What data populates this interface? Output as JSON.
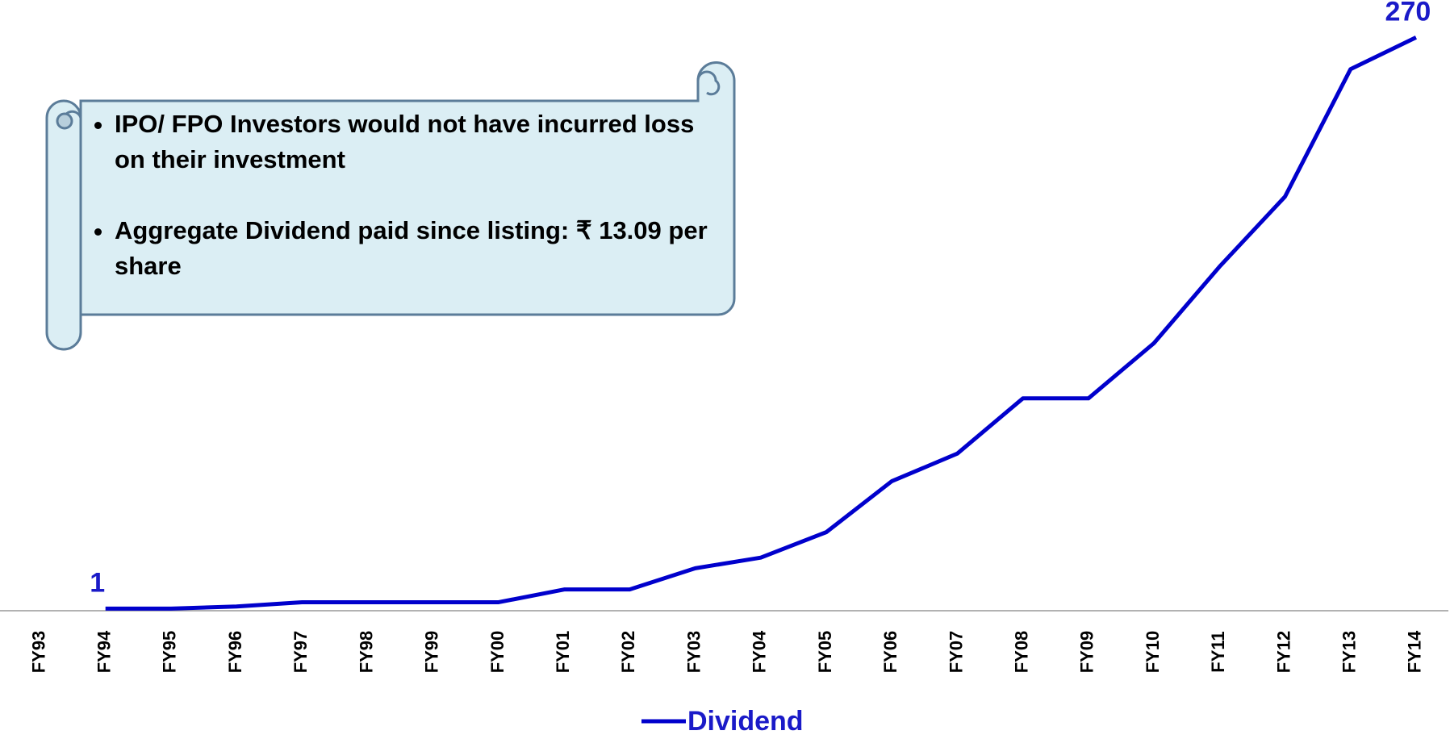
{
  "chart_data": {
    "type": "line",
    "categories": [
      "FY93",
      "FY94",
      "FY95",
      "FY96",
      "FY97",
      "FY98",
      "FY99",
      "FY00",
      "FY01",
      "FY02",
      "FY03",
      "FY04",
      "FY05",
      "FY06",
      "FY07",
      "FY08",
      "FY09",
      "FY10",
      "FY11",
      "FY12",
      "FY13",
      "FY14"
    ],
    "series": [
      {
        "name": "Dividend",
        "color": "#0000cc",
        "values": [
          null,
          1,
          1,
          2,
          4,
          4,
          4,
          4,
          10,
          10,
          20,
          25,
          37,
          61,
          74,
          100,
          100,
          126,
          162,
          195,
          255,
          270
        ],
        "value_labels": [
          null,
          "1",
          null,
          null,
          null,
          null,
          null,
          null,
          null,
          null,
          null,
          null,
          null,
          null,
          null,
          null,
          null,
          null,
          null,
          null,
          null,
          "270"
        ]
      }
    ],
    "ylim": [
      0,
      280
    ],
    "legend": "bottom",
    "annotation": [
      "IPO/ FPO Investors would not have incurred loss on their investment",
      "Aggregate Dividend paid since listing: ₹ 13.09 per share"
    ]
  }
}
